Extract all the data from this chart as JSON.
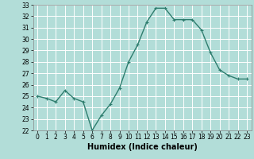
{
  "xlabel": "Humidex (Indice chaleur)",
  "x": [
    0,
    1,
    2,
    3,
    4,
    5,
    6,
    7,
    8,
    9,
    10,
    11,
    12,
    13,
    14,
    15,
    16,
    17,
    18,
    19,
    20,
    21,
    22,
    23
  ],
  "y": [
    25.0,
    24.8,
    24.5,
    25.5,
    24.8,
    24.5,
    22.0,
    23.3,
    24.3,
    25.7,
    28.0,
    29.5,
    31.5,
    32.7,
    32.7,
    31.7,
    31.7,
    31.7,
    30.8,
    28.8,
    27.3,
    26.8,
    26.5,
    26.5
  ],
  "ylim": [
    22,
    33
  ],
  "yticks": [
    22,
    23,
    24,
    25,
    26,
    27,
    28,
    29,
    30,
    31,
    32,
    33
  ],
  "xticks": [
    0,
    1,
    2,
    3,
    4,
    5,
    6,
    7,
    8,
    9,
    10,
    11,
    12,
    13,
    14,
    15,
    16,
    17,
    18,
    19,
    20,
    21,
    22,
    23
  ],
  "line_color": "#2e7d6e",
  "marker": "+",
  "bg_color": "#b2ddd8",
  "grid_color": "#ffffff",
  "tick_fontsize": 5.5,
  "xlabel_fontsize": 7,
  "linewidth": 1.0,
  "markersize": 3,
  "markeredgewidth": 0.8
}
